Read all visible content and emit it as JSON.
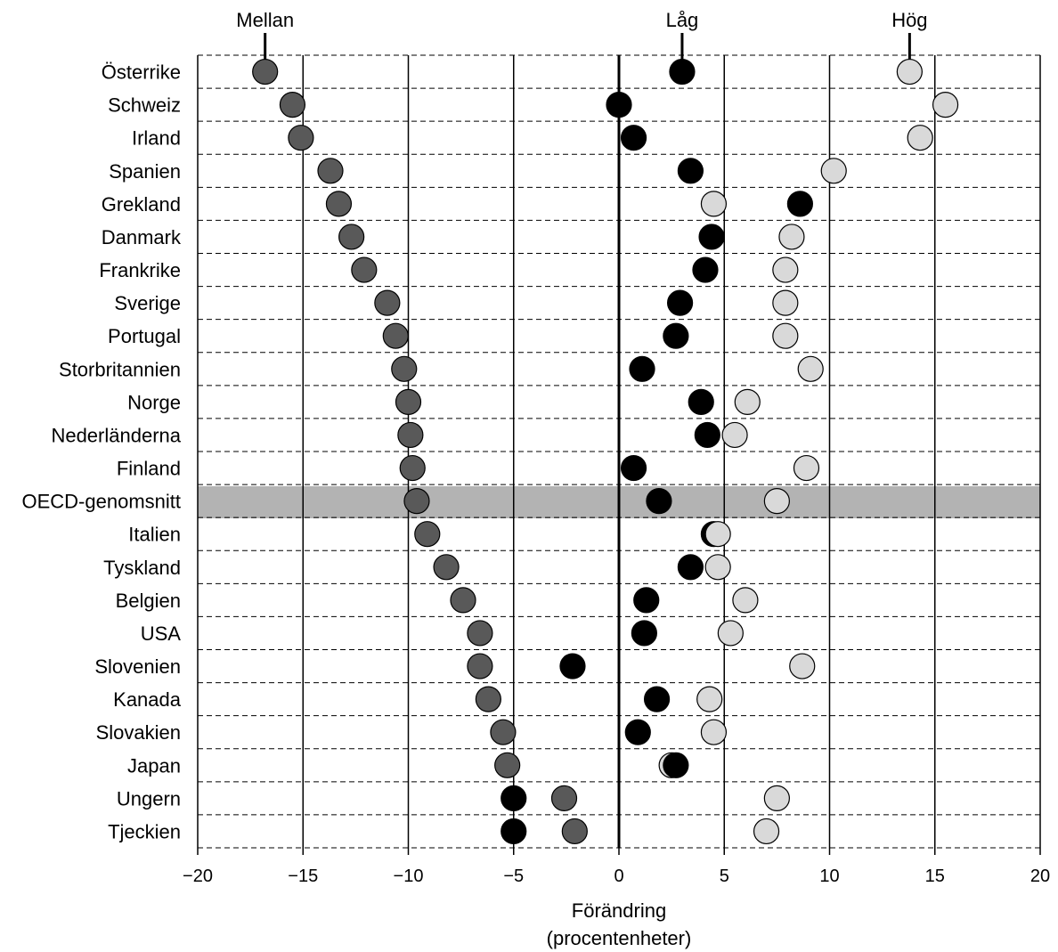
{
  "chart_data": {
    "type": "scatter",
    "title": "",
    "xlabel": [
      "Förändring",
      "(procentenheter)"
    ],
    "ylabel": "",
    "xlim": [
      -20,
      20
    ],
    "xticks": [
      -20,
      -15,
      -10,
      -5,
      0,
      5,
      10,
      15,
      20
    ],
    "xtick_labels": [
      "−20",
      "−15",
      "−10",
      "−5",
      "0",
      "5",
      "10",
      "15",
      "20"
    ],
    "grid": "vertical lines at ticks, dashed row separators",
    "highlighted_category": "OECD-genomsnitt",
    "categories": [
      "Österrike",
      "Schweiz",
      "Irland",
      "Spanien",
      "Grekland",
      "Danmark",
      "Frankrike",
      "Sverige",
      "Portugal",
      "Storbritannien",
      "Norge",
      "Nederländerna",
      "Finland",
      "OECD-genomsnitt",
      "Italien",
      "Tyskland",
      "Belgien",
      "USA",
      "Slovenien",
      "Kanada",
      "Slovakien",
      "Japan",
      "Ungern",
      "Tjeckien"
    ],
    "series": [
      {
        "name": "Mellan",
        "color": "#595959",
        "values": [
          -16.8,
          -15.5,
          -15.1,
          -13.7,
          -13.3,
          -12.7,
          -12.1,
          -11.0,
          -10.6,
          -10.2,
          -10.0,
          -9.9,
          -9.8,
          -9.6,
          -9.1,
          -8.2,
          -7.4,
          -6.6,
          -6.6,
          -6.2,
          -5.5,
          -5.3,
          -2.6,
          -2.1
        ]
      },
      {
        "name": "Låg",
        "color": "#000000",
        "values": [
          3.0,
          0.0,
          0.7,
          3.4,
          8.6,
          4.4,
          4.1,
          2.9,
          2.7,
          1.1,
          3.9,
          4.2,
          0.7,
          1.9,
          4.5,
          3.4,
          1.3,
          1.2,
          -2.2,
          1.8,
          0.9,
          2.7,
          -5.0,
          -5.0
        ]
      },
      {
        "name": "Hög",
        "color": "#d9d9d9",
        "values": [
          13.8,
          15.5,
          14.3,
          10.2,
          4.5,
          8.2,
          7.9,
          7.9,
          7.9,
          9.1,
          6.1,
          5.5,
          8.9,
          7.5,
          4.7,
          4.7,
          6.0,
          5.3,
          8.7,
          4.3,
          4.5,
          2.5,
          7.5,
          7.0
        ]
      }
    ]
  }
}
